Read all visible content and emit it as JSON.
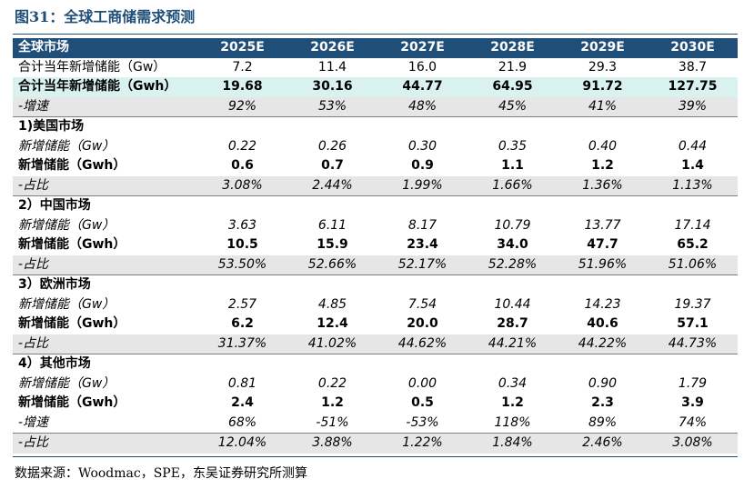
{
  "title": "图31：全球工商储需求预测",
  "source": "数据来源：Woodmac，SPE，东吴证券研究所测算",
  "header": {
    "label": "全球市场",
    "years": [
      "2025E",
      "2026E",
      "2027E",
      "2028E",
      "2029E",
      "2030E"
    ]
  },
  "rows": [
    {
      "style": "normal",
      "label": "合计当年新增储能（Gw）",
      "values": [
        "7.2",
        "11.4",
        "16.0",
        "21.9",
        "29.3",
        "38.7"
      ]
    },
    {
      "style": "hl",
      "label": "合计当年新增储能（Gwh）",
      "values": [
        "19.68",
        "30.16",
        "44.77",
        "64.95",
        "91.72",
        "127.75"
      ]
    },
    {
      "style": "italic shade sep",
      "label": "-增速",
      "values": [
        "92%",
        "53%",
        "48%",
        "45%",
        "41%",
        "39%"
      ]
    },
    {
      "style": "section",
      "label": "1)美国市场",
      "values": [
        "",
        "",
        "",
        "",
        "",
        ""
      ]
    },
    {
      "style": "italic",
      "label": "新增储能（Gw）",
      "values": [
        "0.22",
        "0.26",
        "0.30",
        "0.35",
        "0.40",
        "0.44"
      ]
    },
    {
      "style": "bold",
      "label": "新增储能（Gwh）",
      "values": [
        "0.6",
        "0.7",
        "0.9",
        "1.1",
        "1.2",
        "1.4"
      ]
    },
    {
      "style": "italic shade sep",
      "label": "-占比",
      "values": [
        "3.08%",
        "2.44%",
        "1.99%",
        "1.66%",
        "1.36%",
        "1.13%"
      ]
    },
    {
      "style": "section",
      "label": "2）中国市场",
      "values": [
        "",
        "",
        "",
        "",
        "",
        ""
      ]
    },
    {
      "style": "italic",
      "label": "新增储能（Gw）",
      "values": [
        "3.63",
        "6.11",
        "8.17",
        "10.79",
        "13.77",
        "17.14"
      ]
    },
    {
      "style": "bold",
      "label": "新增储能（Gwh）",
      "values": [
        "10.5",
        "15.9",
        "23.4",
        "34.0",
        "47.7",
        "65.2"
      ]
    },
    {
      "style": "italic shade sep",
      "label": "-占比",
      "values": [
        "53.50%",
        "52.66%",
        "52.17%",
        "52.28%",
        "51.96%",
        "51.06%"
      ]
    },
    {
      "style": "section",
      "label": "3）欧洲市场",
      "values": [
        "",
        "",
        "",
        "",
        "",
        ""
      ]
    },
    {
      "style": "italic",
      "label": "新增储能（Gw）",
      "values": [
        "2.57",
        "4.85",
        "7.54",
        "10.44",
        "14.23",
        "19.37"
      ]
    },
    {
      "style": "bold",
      "label": "新增储能（Gwh）",
      "values": [
        "6.2",
        "12.4",
        "20.0",
        "28.7",
        "40.6",
        "57.1"
      ]
    },
    {
      "style": "italic shade sep",
      "label": "-占比",
      "values": [
        "31.37%",
        "41.02%",
        "44.62%",
        "44.21%",
        "44.22%",
        "44.73%"
      ]
    },
    {
      "style": "section",
      "label": "4）其他市场",
      "values": [
        "",
        "",
        "",
        "",
        "",
        ""
      ]
    },
    {
      "style": "italic",
      "label": "新增储能（Gw）",
      "values": [
        "0.81",
        "0.22",
        "0.00",
        "0.34",
        "0.90",
        "1.79"
      ]
    },
    {
      "style": "bold",
      "label": "新增储能（Gwh）",
      "values": [
        "2.4",
        "1.2",
        "0.5",
        "1.2",
        "2.3",
        "3.9"
      ]
    },
    {
      "style": "italic sep",
      "label": "-增速",
      "values": [
        "68%",
        "-51%",
        "-53%",
        "118%",
        "89%",
        "74%"
      ]
    },
    {
      "style": "italic shade",
      "label": "-占比",
      "values": [
        "12.04%",
        "3.88%",
        "1.22%",
        "1.84%",
        "2.46%",
        "3.08%"
      ]
    }
  ]
}
